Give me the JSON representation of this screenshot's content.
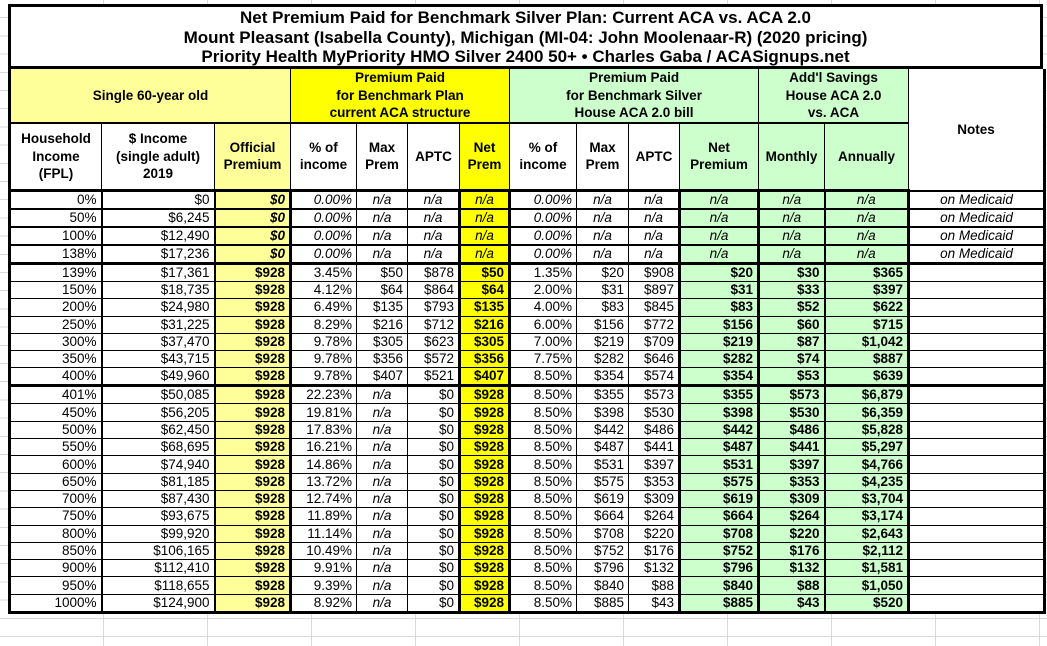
{
  "title": {
    "line1": "Net Premium Paid for Benchmark Silver Plan: Current ACA vs. ACA 2.0",
    "line2": "Mount Pleasant (Isabella County), Michigan (MI-04: John Moolenaar-R) (2020 pricing)",
    "line3": "Priority Health MyPriority HMO Silver 2400 50+ • Charles Gaba / ACASignups.net"
  },
  "colors": {
    "pale_yellow": "#FFFF99",
    "bright_yellow": "#FFFF00",
    "light_green": "#CCFFCC",
    "border": "#000000",
    "gridline_gray": "#D9D9D9"
  },
  "table": {
    "group_headers": {
      "demographic": "Single 60-year old",
      "aca": "Premium Paid\nfor Benchmark Plan\ncurrent ACA structure",
      "aca20": "Premium Paid\nfor Benchmark Silver\nHouse ACA 2.0 bill",
      "savings": "Add'l Savings\nHouse ACA 2.0\nvs. ACA",
      "notes": "Notes"
    },
    "columns": [
      "Household\nIncome\n(FPL)",
      "$ Income\n(single adult)\n2019",
      "Official\nPremium",
      "% of\nincome",
      "Max\nPrem",
      "APTC",
      "Net\nPrem",
      "% of\nincome",
      "Max\nPrem",
      "APTC",
      "Net\nPremium",
      "Monthly",
      "Annually"
    ],
    "rows": [
      {
        "fpl": "0%",
        "income": "$0",
        "official": "$0",
        "aca": {
          "pct": "0.00%",
          "max": "n/a",
          "aptc": "n/a",
          "net": "n/a"
        },
        "aca20": {
          "pct": "0.00%",
          "max": "n/a",
          "aptc": "n/a",
          "net": "n/a"
        },
        "savings": {
          "monthly": "n/a",
          "annually": "n/a"
        },
        "note": "on Medicaid",
        "medicaid": true,
        "separator_below": false
      },
      {
        "fpl": "50%",
        "income": "$6,245",
        "official": "$0",
        "aca": {
          "pct": "0.00%",
          "max": "n/a",
          "aptc": "n/a",
          "net": "n/a"
        },
        "aca20": {
          "pct": "0.00%",
          "max": "n/a",
          "aptc": "n/a",
          "net": "n/a"
        },
        "savings": {
          "monthly": "n/a",
          "annually": "n/a"
        },
        "note": "on Medicaid",
        "medicaid": true,
        "separator_below": false
      },
      {
        "fpl": "100%",
        "income": "$12,490",
        "official": "$0",
        "aca": {
          "pct": "0.00%",
          "max": "n/a",
          "aptc": "n/a",
          "net": "n/a"
        },
        "aca20": {
          "pct": "0.00%",
          "max": "n/a",
          "aptc": "n/a",
          "net": "n/a"
        },
        "savings": {
          "monthly": "n/a",
          "annually": "n/a"
        },
        "note": "on Medicaid",
        "medicaid": true,
        "separator_below": false
      },
      {
        "fpl": "138%",
        "income": "$17,236",
        "official": "$0",
        "aca": {
          "pct": "0.00%",
          "max": "n/a",
          "aptc": "n/a",
          "net": "n/a"
        },
        "aca20": {
          "pct": "0.00%",
          "max": "n/a",
          "aptc": "n/a",
          "net": "n/a"
        },
        "savings": {
          "monthly": "n/a",
          "annually": "n/a"
        },
        "note": "on Medicaid",
        "medicaid": true,
        "separator_below": true
      },
      {
        "fpl": "139%",
        "income": "$17,361",
        "official": "$928",
        "aca": {
          "pct": "3.45%",
          "max": "$50",
          "aptc": "$878",
          "net": "$50"
        },
        "aca20": {
          "pct": "1.35%",
          "max": "$20",
          "aptc": "$908",
          "net": "$20"
        },
        "savings": {
          "monthly": "$30",
          "annually": "$365"
        },
        "note": "",
        "medicaid": false,
        "separator_below": false
      },
      {
        "fpl": "150%",
        "income": "$18,735",
        "official": "$928",
        "aca": {
          "pct": "4.12%",
          "max": "$64",
          "aptc": "$864",
          "net": "$64"
        },
        "aca20": {
          "pct": "2.00%",
          "max": "$31",
          "aptc": "$897",
          "net": "$31"
        },
        "savings": {
          "monthly": "$33",
          "annually": "$397"
        },
        "note": "",
        "medicaid": false,
        "separator_below": false
      },
      {
        "fpl": "200%",
        "income": "$24,980",
        "official": "$928",
        "aca": {
          "pct": "6.49%",
          "max": "$135",
          "aptc": "$793",
          "net": "$135"
        },
        "aca20": {
          "pct": "4.00%",
          "max": "$83",
          "aptc": "$845",
          "net": "$83"
        },
        "savings": {
          "monthly": "$52",
          "annually": "$622"
        },
        "note": "",
        "medicaid": false,
        "separator_below": false
      },
      {
        "fpl": "250%",
        "income": "$31,225",
        "official": "$928",
        "aca": {
          "pct": "8.29%",
          "max": "$216",
          "aptc": "$712",
          "net": "$216"
        },
        "aca20": {
          "pct": "6.00%",
          "max": "$156",
          "aptc": "$772",
          "net": "$156"
        },
        "savings": {
          "monthly": "$60",
          "annually": "$715"
        },
        "note": "",
        "medicaid": false,
        "separator_below": false
      },
      {
        "fpl": "300%",
        "income": "$37,470",
        "official": "$928",
        "aca": {
          "pct": "9.78%",
          "max": "$305",
          "aptc": "$623",
          "net": "$305"
        },
        "aca20": {
          "pct": "7.00%",
          "max": "$219",
          "aptc": "$709",
          "net": "$219"
        },
        "savings": {
          "monthly": "$87",
          "annually": "$1,042"
        },
        "note": "",
        "medicaid": false,
        "separator_below": false
      },
      {
        "fpl": "350%",
        "income": "$43,715",
        "official": "$928",
        "aca": {
          "pct": "9.78%",
          "max": "$356",
          "aptc": "$572",
          "net": "$356"
        },
        "aca20": {
          "pct": "7.75%",
          "max": "$282",
          "aptc": "$646",
          "net": "$282"
        },
        "savings": {
          "monthly": "$74",
          "annually": "$887"
        },
        "note": "",
        "medicaid": false,
        "separator_below": false
      },
      {
        "fpl": "400%",
        "income": "$49,960",
        "official": "$928",
        "aca": {
          "pct": "9.78%",
          "max": "$407",
          "aptc": "$521",
          "net": "$407"
        },
        "aca20": {
          "pct": "8.50%",
          "max": "$354",
          "aptc": "$574",
          "net": "$354"
        },
        "savings": {
          "monthly": "$53",
          "annually": "$639"
        },
        "note": "",
        "medicaid": false,
        "separator_below": true
      },
      {
        "fpl": "401%",
        "income": "$50,085",
        "official": "$928",
        "aca": {
          "pct": "22.23%",
          "max": "n/a",
          "aptc": "$0",
          "net": "$928"
        },
        "aca20": {
          "pct": "8.50%",
          "max": "$355",
          "aptc": "$573",
          "net": "$355"
        },
        "savings": {
          "monthly": "$573",
          "annually": "$6,879"
        },
        "note": "",
        "medicaid": false,
        "separator_below": false
      },
      {
        "fpl": "450%",
        "income": "$56,205",
        "official": "$928",
        "aca": {
          "pct": "19.81%",
          "max": "n/a",
          "aptc": "$0",
          "net": "$928"
        },
        "aca20": {
          "pct": "8.50%",
          "max": "$398",
          "aptc": "$530",
          "net": "$398"
        },
        "savings": {
          "monthly": "$530",
          "annually": "$6,359"
        },
        "note": "",
        "medicaid": false,
        "separator_below": false
      },
      {
        "fpl": "500%",
        "income": "$62,450",
        "official": "$928",
        "aca": {
          "pct": "17.83%",
          "max": "n/a",
          "aptc": "$0",
          "net": "$928"
        },
        "aca20": {
          "pct": "8.50%",
          "max": "$442",
          "aptc": "$486",
          "net": "$442"
        },
        "savings": {
          "monthly": "$486",
          "annually": "$5,828"
        },
        "note": "",
        "medicaid": false,
        "separator_below": false
      },
      {
        "fpl": "550%",
        "income": "$68,695",
        "official": "$928",
        "aca": {
          "pct": "16.21%",
          "max": "n/a",
          "aptc": "$0",
          "net": "$928"
        },
        "aca20": {
          "pct": "8.50%",
          "max": "$487",
          "aptc": "$441",
          "net": "$487"
        },
        "savings": {
          "monthly": "$441",
          "annually": "$5,297"
        },
        "note": "",
        "medicaid": false,
        "separator_below": false
      },
      {
        "fpl": "600%",
        "income": "$74,940",
        "official": "$928",
        "aca": {
          "pct": "14.86%",
          "max": "n/a",
          "aptc": "$0",
          "net": "$928"
        },
        "aca20": {
          "pct": "8.50%",
          "max": "$531",
          "aptc": "$397",
          "net": "$531"
        },
        "savings": {
          "monthly": "$397",
          "annually": "$4,766"
        },
        "note": "",
        "medicaid": false,
        "separator_below": false
      },
      {
        "fpl": "650%",
        "income": "$81,185",
        "official": "$928",
        "aca": {
          "pct": "13.72%",
          "max": "n/a",
          "aptc": "$0",
          "net": "$928"
        },
        "aca20": {
          "pct": "8.50%",
          "max": "$575",
          "aptc": "$353",
          "net": "$575"
        },
        "savings": {
          "monthly": "$353",
          "annually": "$4,235"
        },
        "note": "",
        "medicaid": false,
        "separator_below": false
      },
      {
        "fpl": "700%",
        "income": "$87,430",
        "official": "$928",
        "aca": {
          "pct": "12.74%",
          "max": "n/a",
          "aptc": "$0",
          "net": "$928"
        },
        "aca20": {
          "pct": "8.50%",
          "max": "$619",
          "aptc": "$309",
          "net": "$619"
        },
        "savings": {
          "monthly": "$309",
          "annually": "$3,704"
        },
        "note": "",
        "medicaid": false,
        "separator_below": false
      },
      {
        "fpl": "750%",
        "income": "$93,675",
        "official": "$928",
        "aca": {
          "pct": "11.89%",
          "max": "n/a",
          "aptc": "$0",
          "net": "$928"
        },
        "aca20": {
          "pct": "8.50%",
          "max": "$664",
          "aptc": "$264",
          "net": "$664"
        },
        "savings": {
          "monthly": "$264",
          "annually": "$3,174"
        },
        "note": "",
        "medicaid": false,
        "separator_below": false
      },
      {
        "fpl": "800%",
        "income": "$99,920",
        "official": "$928",
        "aca": {
          "pct": "11.14%",
          "max": "n/a",
          "aptc": "$0",
          "net": "$928"
        },
        "aca20": {
          "pct": "8.50%",
          "max": "$708",
          "aptc": "$220",
          "net": "$708"
        },
        "savings": {
          "monthly": "$220",
          "annually": "$2,643"
        },
        "note": "",
        "medicaid": false,
        "separator_below": false
      },
      {
        "fpl": "850%",
        "income": "$106,165",
        "official": "$928",
        "aca": {
          "pct": "10.49%",
          "max": "n/a",
          "aptc": "$0",
          "net": "$928"
        },
        "aca20": {
          "pct": "8.50%",
          "max": "$752",
          "aptc": "$176",
          "net": "$752"
        },
        "savings": {
          "monthly": "$176",
          "annually": "$2,112"
        },
        "note": "",
        "medicaid": false,
        "separator_below": false
      },
      {
        "fpl": "900%",
        "income": "$112,410",
        "official": "$928",
        "aca": {
          "pct": "9.91%",
          "max": "n/a",
          "aptc": "$0",
          "net": "$928"
        },
        "aca20": {
          "pct": "8.50%",
          "max": "$796",
          "aptc": "$132",
          "net": "$796"
        },
        "savings": {
          "monthly": "$132",
          "annually": "$1,581"
        },
        "note": "",
        "medicaid": false,
        "separator_below": false
      },
      {
        "fpl": "950%",
        "income": "$118,655",
        "official": "$928",
        "aca": {
          "pct": "9.39%",
          "max": "n/a",
          "aptc": "$0",
          "net": "$928"
        },
        "aca20": {
          "pct": "8.50%",
          "max": "$840",
          "aptc": "$88",
          "net": "$840"
        },
        "savings": {
          "monthly": "$88",
          "annually": "$1,050"
        },
        "note": "",
        "medicaid": false,
        "separator_below": false
      },
      {
        "fpl": "1000%",
        "income": "$124,900",
        "official": "$928",
        "aca": {
          "pct": "8.92%",
          "max": "n/a",
          "aptc": "$0",
          "net": "$928"
        },
        "aca20": {
          "pct": "8.50%",
          "max": "$885",
          "aptc": "$43",
          "net": "$885"
        },
        "savings": {
          "monthly": "$43",
          "annually": "$520"
        },
        "note": "",
        "medicaid": false,
        "separator_below": false
      }
    ]
  }
}
